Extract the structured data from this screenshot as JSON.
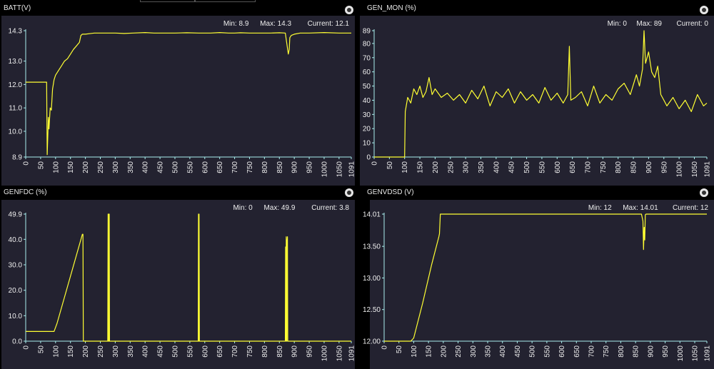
{
  "chart_data": [
    {
      "type": "line",
      "title": "BATT(V)",
      "stats": {
        "min_label": "Min: 8.9",
        "max_label": "Max: 14.3",
        "current_label": "Current: 12.1"
      },
      "xlim": [
        0,
        1091
      ],
      "ylim": [
        8.9,
        14.3
      ],
      "xticks": [
        0,
        50,
        100,
        150,
        200,
        250,
        300,
        350,
        400,
        450,
        500,
        550,
        600,
        650,
        700,
        750,
        800,
        850,
        900,
        950,
        1000,
        1050,
        1091
      ],
      "yticks": [
        8.9,
        10.0,
        11.0,
        12.0,
        13.0,
        14.3
      ],
      "ytick_labels": [
        "8.9",
        "10.0",
        "11.0",
        "12.0",
        "13.0",
        "14.3"
      ],
      "color": "#ffff33",
      "series": [
        {
          "x": [
            0,
            70,
            72,
            76,
            78,
            82,
            86,
            90,
            95,
            100,
            110,
            120,
            130,
            140,
            150,
            160,
            170,
            180,
            185,
            190,
            200,
            230,
            260,
            300,
            330,
            360,
            400,
            430,
            460,
            500,
            540,
            580,
            620,
            650,
            680,
            700,
            720,
            750,
            780,
            820,
            850,
            870,
            880,
            883,
            885,
            890,
            900,
            920,
            950,
            1000,
            1050,
            1091
          ],
          "y": [
            12.1,
            12.1,
            9.0,
            10.6,
            10.1,
            11.0,
            10.9,
            11.8,
            12.2,
            12.4,
            12.6,
            12.8,
            13.0,
            13.1,
            13.3,
            13.5,
            13.65,
            13.8,
            14.1,
            14.15,
            14.15,
            14.2,
            14.2,
            14.2,
            14.18,
            14.2,
            14.22,
            14.2,
            14.2,
            14.2,
            14.21,
            14.2,
            14.2,
            14.22,
            14.2,
            14.2,
            14.21,
            14.2,
            14.2,
            14.2,
            14.21,
            14.2,
            13.3,
            13.5,
            14.0,
            14.1,
            14.15,
            14.2,
            14.2,
            14.22,
            14.2,
            14.2
          ]
        }
      ]
    },
    {
      "type": "line",
      "title": "GEN_MON (%)",
      "stats": {
        "min_label": "Min: 0",
        "max_label": "Max: 89",
        "current_label": "Current: 0"
      },
      "xlim": [
        0,
        1091
      ],
      "ylim": [
        0,
        89
      ],
      "xticks": [
        0,
        50,
        100,
        150,
        200,
        250,
        300,
        350,
        400,
        450,
        500,
        550,
        600,
        650,
        700,
        750,
        800,
        850,
        900,
        950,
        1000,
        1050,
        1091
      ],
      "yticks": [
        0,
        10,
        20,
        30,
        40,
        50,
        60,
        70,
        80,
        89
      ],
      "ytick_labels": [
        "0",
        "10",
        "20",
        "30",
        "40",
        "50",
        "60",
        "70",
        "80",
        "89"
      ],
      "color": "#ffff33",
      "series": [
        {
          "x": [
            0,
            100,
            102,
            110,
            120,
            130,
            140,
            150,
            160,
            170,
            180,
            190,
            200,
            220,
            240,
            260,
            280,
            300,
            320,
            340,
            360,
            380,
            400,
            420,
            440,
            460,
            480,
            500,
            520,
            540,
            560,
            580,
            600,
            620,
            635,
            640,
            645,
            660,
            680,
            700,
            720,
            740,
            760,
            780,
            800,
            820,
            840,
            860,
            870,
            880,
            885,
            890,
            900,
            910,
            920,
            930,
            940,
            950,
            960,
            980,
            1000,
            1020,
            1040,
            1060,
            1080,
            1091
          ],
          "y": [
            0,
            0,
            32,
            42,
            38,
            48,
            44,
            50,
            42,
            46,
            56,
            44,
            48,
            42,
            45,
            40,
            44,
            38,
            47,
            41,
            50,
            36,
            46,
            42,
            48,
            38,
            46,
            40,
            44,
            38,
            49,
            40,
            45,
            38,
            44,
            78,
            40,
            42,
            46,
            36,
            50,
            38,
            44,
            40,
            48,
            52,
            44,
            58,
            50,
            62,
            89,
            66,
            74,
            60,
            56,
            64,
            44,
            40,
            36,
            42,
            34,
            40,
            32,
            44,
            36,
            38
          ]
        }
      ]
    },
    {
      "type": "line",
      "title": "GENFDC (%)",
      "stats": {
        "min_label": "Min: 0",
        "max_label": "Max: 49.9",
        "current_label": "Current: 3.8"
      },
      "xlim": [
        0,
        1091
      ],
      "ylim": [
        0,
        49.9
      ],
      "xticks": [
        0,
        50,
        100,
        150,
        200,
        250,
        300,
        350,
        400,
        450,
        500,
        550,
        600,
        650,
        700,
        750,
        800,
        850,
        900,
        950,
        1000,
        1050,
        1091
      ],
      "yticks": [
        0.0,
        10.0,
        20.0,
        30.0,
        40.0,
        49.9
      ],
      "ytick_labels": [
        "0.0",
        "10.0",
        "20.0",
        "30.0",
        "40.0",
        "49.9"
      ],
      "color": "#ffff33",
      "series": [
        {
          "x": [
            0,
            95,
            105,
            190,
            192,
            193,
            275,
            276,
            277,
            278,
            279,
            280,
            281,
            282,
            578,
            579,
            580,
            581,
            582,
            583,
            870,
            871,
            872,
            873,
            874,
            875,
            876,
            877,
            878,
            879,
            880,
            1091
          ],
          "y": [
            3.8,
            3.8,
            7,
            42,
            42,
            0,
            0,
            49.9,
            0,
            49.9,
            0,
            49.9,
            0,
            0,
            0,
            49.9,
            0,
            49.9,
            0,
            0,
            0,
            37,
            0,
            41,
            38,
            0,
            39,
            41,
            0,
            0,
            0,
            0
          ]
        }
      ]
    },
    {
      "type": "line",
      "title": "GENVDSD (V)",
      "stats": {
        "min_label": "Min: 12",
        "max_label": "Max: 14.01",
        "current_label": "Current: 12"
      },
      "xlim": [
        0,
        1091
      ],
      "ylim": [
        12.0,
        14.01
      ],
      "xticks": [
        0,
        50,
        100,
        150,
        200,
        250,
        300,
        350,
        400,
        450,
        500,
        550,
        600,
        650,
        700,
        750,
        800,
        850,
        900,
        950,
        1000,
        1050,
        1091
      ],
      "yticks": [
        12.0,
        12.5,
        13.0,
        13.5,
        14.01
      ],
      "ytick_labels": [
        "12.00",
        "12.50",
        "13.00",
        "13.50",
        "14.01"
      ],
      "color": "#ffff33",
      "series": [
        {
          "x": [
            0,
            90,
            100,
            130,
            160,
            185,
            187,
            190,
            200,
            300,
            400,
            500,
            600,
            700,
            800,
            870,
            875,
            877,
            879,
            881,
            883,
            885,
            890,
            900,
            1000,
            1091
          ],
          "y": [
            12.0,
            12.0,
            12.05,
            12.6,
            13.2,
            13.65,
            13.7,
            14.01,
            14.01,
            14.01,
            14.01,
            14.01,
            14.01,
            14.01,
            14.01,
            14.01,
            13.9,
            13.45,
            13.8,
            13.6,
            14.0,
            14.01,
            14.01,
            14.01,
            14.01,
            14.01
          ]
        }
      ]
    }
  ]
}
